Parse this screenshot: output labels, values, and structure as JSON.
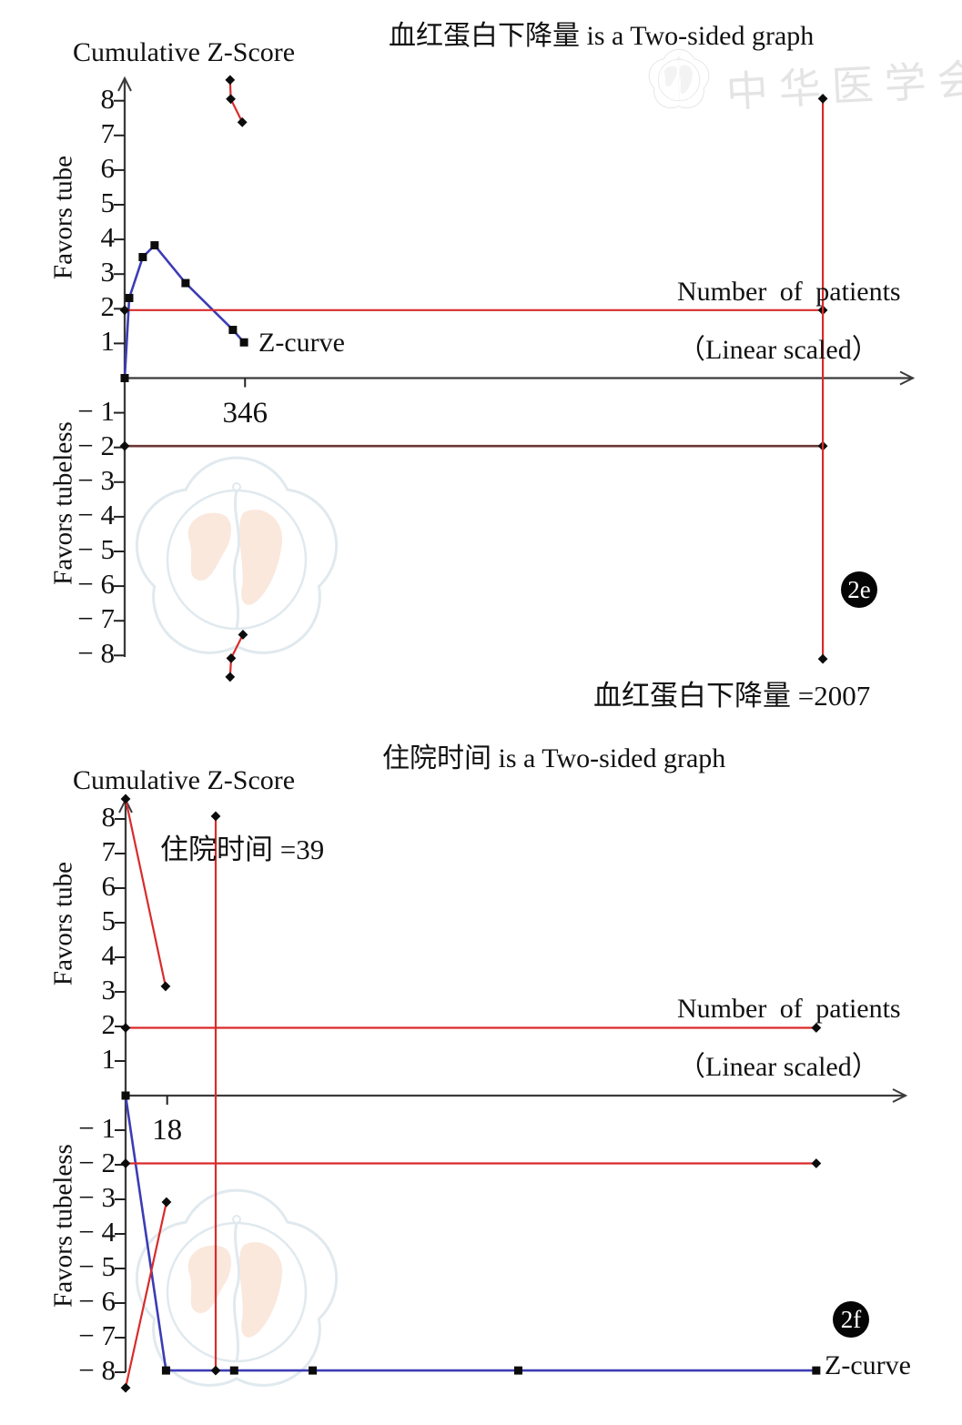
{
  "watermark": {
    "seal_text": "中华医学会"
  },
  "chart_data": [
    {
      "type": "line",
      "panel_label": "2e",
      "title": "血红蛋白下降量 is a Two-sided graph",
      "y_axis_title": "Cumulative Z-Score",
      "favors_positive": "Favors tube",
      "favors_negative": "Favors tubeless",
      "xlabel": "Number of patients",
      "xlabel_note": "（Linear scaled）",
      "z_curve_label": "Z-curve",
      "required_information_size": 2007,
      "required_size_annotation": "血红蛋白下降量 =2007",
      "xlim": [
        0,
        2258
      ],
      "ylim": [
        -8.9,
        8.9
      ],
      "grid": false,
      "x_ticks": [
        {
          "value": 346,
          "label": "346"
        }
      ],
      "y_ticks_positive": [
        8,
        7,
        6,
        5,
        4,
        3,
        2,
        1
      ],
      "y_ticks_negative_labels": [
        "− 1",
        "− 2",
        "− 3",
        "− 4",
        "− 5",
        "− 6",
        "− 7",
        "− 8"
      ],
      "series": [
        {
          "name": "z-curve",
          "color": "#3c3cb4",
          "width": 2.6,
          "marker": "square",
          "points": [
            [
              0,
              0
            ],
            [
              13,
              2.31
            ],
            [
              52,
              3.49
            ],
            [
              86,
              3.83
            ],
            [
              175,
              2.74
            ],
            [
              311,
              1.39
            ],
            [
              343,
              1.03
            ]
          ]
        },
        {
          "name": "upper-monitoring-boundary",
          "color": "#d92b2b",
          "width": 2.2,
          "marker": "diamond",
          "points": [
            [
              303,
              8.6
            ],
            [
              305,
              8.05
            ],
            [
              338,
              7.38
            ]
          ]
        },
        {
          "name": "lower-monitoring-boundary",
          "color": "#d92b2b",
          "width": 2.2,
          "marker": "diamond",
          "points": [
            [
              303,
              -8.62
            ],
            [
              306,
              -8.08
            ],
            [
              340,
              -7.4
            ]
          ]
        },
        {
          "name": "conventional-boundary-upper",
          "color": "#d92b2b",
          "width": 2.2,
          "marker": "diamond",
          "points": [
            [
              0,
              1.96
            ],
            [
              2007,
              1.96
            ]
          ]
        },
        {
          "name": "conventional-boundary-lower",
          "color": "#6b3434",
          "width": 2.6,
          "marker": "diamond",
          "points": [
            [
              0,
              -1.96
            ],
            [
              2007,
              -1.96
            ]
          ]
        },
        {
          "name": "required-information-size-line",
          "color": "#d92b2b",
          "width": 2.2,
          "marker": "diamond",
          "points": [
            [
              2007,
              8.06
            ],
            [
              2007,
              -8.1
            ]
          ]
        }
      ]
    },
    {
      "type": "line",
      "panel_label": "2f",
      "title": "住院时间 is a Two-sided graph",
      "y_axis_title": "Cumulative Z-Score",
      "favors_positive": "Favors tube",
      "favors_negative": "Favors tubeless",
      "xlabel": "Number of patients",
      "xlabel_note": "（Linear scaled）",
      "z_curve_label": "Z-curve",
      "required_information_size": 39,
      "required_size_annotation": "住院时间 =39",
      "xlim": [
        0,
        336
      ],
      "ylim": [
        -8.9,
        8.9
      ],
      "grid": false,
      "x_ticks": [
        {
          "value": 18,
          "label": "18"
        }
      ],
      "y_ticks_positive": [
        8,
        7,
        6,
        5,
        4,
        3,
        2,
        1
      ],
      "y_ticks_negative_labels": [
        "− 1",
        "− 2",
        "− 3",
        "− 4",
        "− 5",
        "− 6",
        "− 7",
        "− 8"
      ],
      "series": [
        {
          "name": "z-curve",
          "color": "#3c3cb4",
          "width": 2.6,
          "marker": "square",
          "points": [
            [
              0,
              0
            ],
            [
              17.5,
              -7.95
            ],
            [
              47,
              -7.95
            ],
            [
              81,
              -7.95
            ],
            [
              170,
              -7.95
            ],
            [
              299,
              -7.95
            ]
          ]
        },
        {
          "name": "upper-monitoring-boundary",
          "color": "#d92b2b",
          "width": 2.2,
          "marker": "diamond",
          "points": [
            [
              0,
              8.58
            ],
            [
              17.3,
              3.16
            ]
          ]
        },
        {
          "name": "lower-monitoring-boundary",
          "color": "#d92b2b",
          "width": 2.2,
          "marker": "diamond",
          "points": [
            [
              0,
              -8.45
            ],
            [
              17.7,
              -3.08
            ]
          ]
        },
        {
          "name": "conventional-boundary-upper",
          "color": "#d92b2b",
          "width": 2.2,
          "marker": "diamond",
          "points": [
            [
              0,
              1.96
            ],
            [
              299,
              1.96
            ]
          ]
        },
        {
          "name": "conventional-boundary-lower",
          "color": "#d92b2b",
          "width": 2.2,
          "marker": "diamond",
          "points": [
            [
              0,
              -1.96
            ],
            [
              299,
              -1.96
            ]
          ]
        },
        {
          "name": "required-information-size-line",
          "color": "#d92b2b",
          "width": 2.2,
          "marker": "diamond",
          "points": [
            [
              39,
              8.08
            ],
            [
              39,
              -7.95
            ]
          ]
        }
      ]
    }
  ]
}
